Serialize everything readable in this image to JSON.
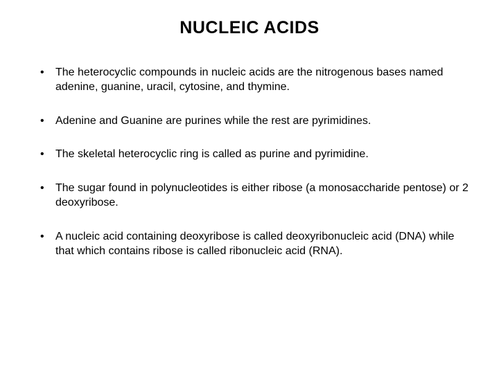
{
  "title": "NUCLEIC ACIDS",
  "title_fontsize": 25,
  "title_weight": "bold",
  "body_fontsize": 16,
  "text_color": "#000000",
  "background_color": "#ffffff",
  "font_family": "Arial",
  "bullets": [
    "The heterocyclic compounds in nucleic acids are the nitrogenous bases named adenine, guanine, uracil, cytosine, and thymine.",
    "Adenine and Guanine are purines while the rest are pyrimidines.",
    "The skeletal heterocyclic ring is called as purine and pyrimidine.",
    "The sugar found in polynucleotides is either ribose (a monosaccharide pentose) or 2 deoxyribose.",
    "A nucleic acid containing deoxyribose is called deoxyribonucleic acid (DNA) while that which contains ribose is called ribonucleic acid (RNA)."
  ]
}
